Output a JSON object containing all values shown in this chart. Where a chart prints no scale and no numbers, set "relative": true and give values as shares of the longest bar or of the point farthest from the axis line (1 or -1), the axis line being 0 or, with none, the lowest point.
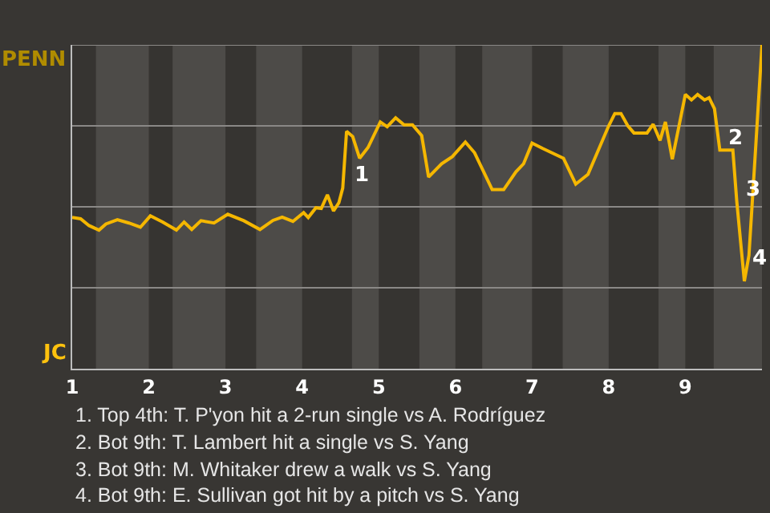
{
  "chart_data": {
    "type": "line",
    "relative": true,
    "x": [
      1.0,
      1.11,
      1.22,
      1.35,
      1.44,
      1.59,
      1.74,
      1.89,
      2.02,
      2.18,
      2.36,
      2.46,
      2.56,
      2.68,
      2.85,
      3.03,
      3.24,
      3.45,
      3.62,
      3.74,
      3.88,
      4.02,
      4.08,
      4.18,
      4.25,
      4.33,
      4.41,
      4.48,
      4.53,
      4.58,
      4.66,
      4.75,
      4.86,
      5.02,
      5.11,
      5.22,
      5.33,
      5.44,
      5.56,
      5.65,
      5.82,
      5.96,
      6.13,
      6.25,
      6.48,
      6.63,
      6.79,
      6.89,
      7.0,
      7.14,
      7.41,
      7.57,
      7.73,
      8.0,
      8.08,
      8.16,
      8.25,
      8.33,
      8.5,
      8.58,
      8.67,
      8.74,
      8.83,
      9.0,
      9.08,
      9.16,
      9.25,
      9.31,
      9.38,
      9.45,
      9.62,
      9.67,
      9.77,
      9.83,
      9.92,
      10.0
    ],
    "series": [
      {
        "color": "#f5b700",
        "values": [
          0.467,
          0.463,
          0.442,
          0.428,
          0.447,
          0.46,
          0.45,
          0.437,
          0.472,
          0.453,
          0.428,
          0.453,
          0.43,
          0.457,
          0.45,
          0.477,
          0.457,
          0.43,
          0.458,
          0.468,
          0.455,
          0.482,
          0.467,
          0.497,
          0.495,
          0.537,
          0.487,
          0.513,
          0.558,
          0.733,
          0.717,
          0.65,
          0.683,
          0.762,
          0.747,
          0.775,
          0.753,
          0.753,
          0.72,
          0.592,
          0.633,
          0.655,
          0.7,
          0.667,
          0.553,
          0.553,
          0.608,
          0.633,
          0.697,
          0.68,
          0.65,
          0.57,
          0.6,
          0.75,
          0.788,
          0.788,
          0.75,
          0.728,
          0.728,
          0.755,
          0.705,
          0.762,
          0.647,
          0.847,
          0.83,
          0.847,
          0.83,
          0.837,
          0.803,
          0.675,
          0.675,
          0.52,
          0.27,
          0.35,
          0.692,
          1
        ]
      }
    ],
    "xlim": [
      1,
      10
    ],
    "xticks": [
      1,
      2,
      3,
      4,
      5,
      6,
      7,
      8,
      9
    ],
    "marker": "none",
    "ref_lines": [
      {
        "axis": "y",
        "value": 1,
        "color": "#8a8886"
      },
      {
        "axis": "y",
        "value": 0.75,
        "color": "#8a8886"
      },
      {
        "axis": "y",
        "value": 0.5,
        "color": "#8a8886"
      },
      {
        "axis": "y",
        "value": 0.25,
        "color": "#8a8886"
      }
    ],
    "bands": [
      {
        "axis": "x",
        "from": 1.31,
        "to": 2,
        "color": "#4d4b48"
      },
      {
        "axis": "x",
        "from": 2.31,
        "to": 3,
        "color": "#4d4b48"
      },
      {
        "axis": "x",
        "from": 3.4,
        "to": 4,
        "color": "#4d4b48"
      },
      {
        "axis": "x",
        "from": 4.65,
        "to": 5,
        "color": "#4d4b48"
      },
      {
        "axis": "x",
        "from": 5.53,
        "to": 6,
        "color": "#4d4b48"
      },
      {
        "axis": "x",
        "from": 6.35,
        "to": 7,
        "color": "#4d4b48"
      },
      {
        "axis": "x",
        "from": 7.4,
        "to": 8,
        "color": "#4d4b48"
      },
      {
        "axis": "x",
        "from": 8.65,
        "to": 9,
        "color": "#4d4b48"
      },
      {
        "axis": "x",
        "from": 9.37,
        "to": 10,
        "color": "#4d4b48"
      }
    ],
    "annotations": [
      "PENN",
      "JC",
      {
        "text": "1",
        "x": 4.62,
        "y": 0.595
      },
      {
        "text": "2",
        "x": 9.48,
        "y": 0.71
      },
      {
        "text": "3",
        "x": 9.72,
        "y": 0.55
      },
      {
        "text": "4",
        "x": 9.8,
        "y": 0.34
      },
      "1. Top 4th: T. P'yon hit a 2-run single vs A. Rodríguez",
      "2. Bot 9th: T. Lambert hit a single vs S. Yang",
      "3. Bot 9th: M. Whitaker drew a walk vs S. Yang",
      "4. Bot 9th: E. Sullivan got hit by a pitch vs S. Yang"
    ]
  }
}
